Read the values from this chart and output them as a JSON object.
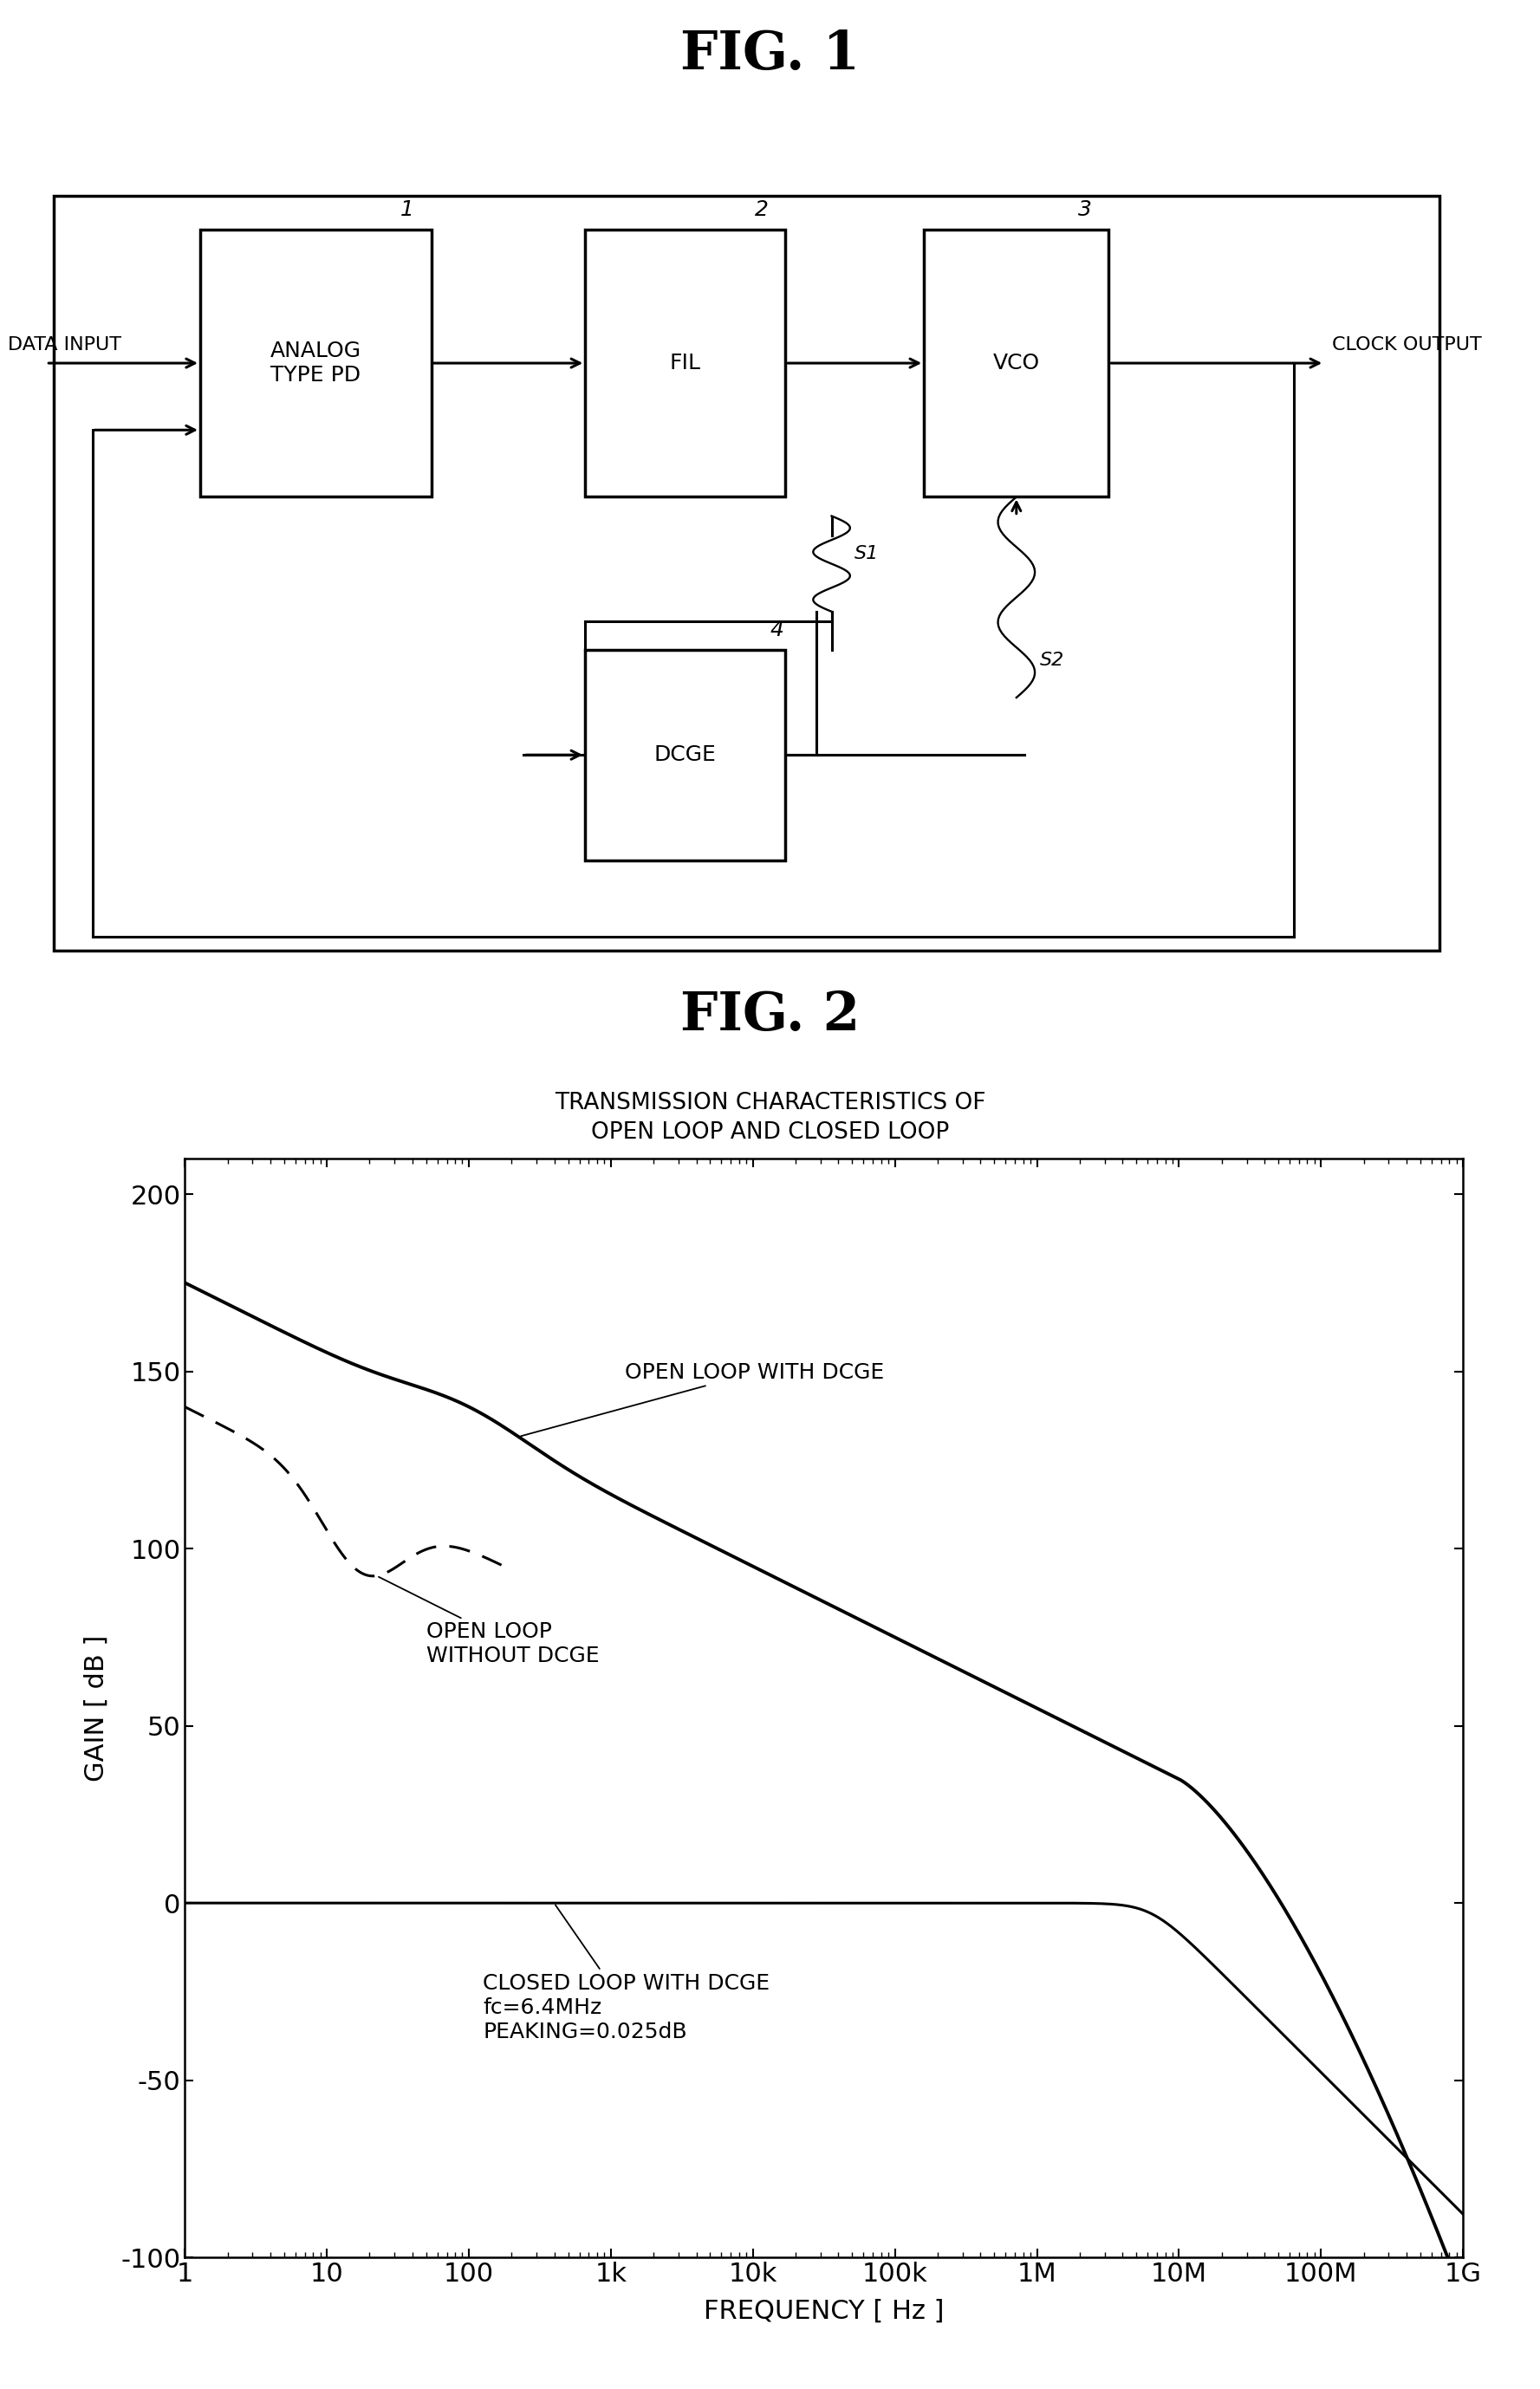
{
  "fig1_title": "FIG. 1",
  "fig2_title": "FIG. 2",
  "fig2_subtitle": "TRANSMISSION CHARACTERISTICS OF\nOPEN LOOP AND CLOSED LOOP",
  "xlabel": "FREQUENCY [ Hz ]",
  "ylabel": "GAIN [ dB ]",
  "xtick_labels": [
    "1",
    "10",
    "100",
    "1k",
    "10k",
    "100k",
    "1M",
    "10M",
    "100M",
    "1G"
  ],
  "xtick_vals": [
    0,
    1,
    2,
    3,
    4,
    5,
    6,
    7,
    8,
    9
  ],
  "ytick_vals": [
    -100,
    -50,
    0,
    50,
    100,
    150,
    200
  ],
  "ylim": [
    -100,
    210
  ],
  "open_loop_dcge_label": "OPEN LOOP WITH DCGE",
  "open_loop_no_dcge_label": "OPEN LOOP\nWITHOUT DCGE",
  "closed_loop_label": "CLOSED LOOP WITH DCGE\nfc=6.4MHz\nPEAKING=0.025dB",
  "bg_color": "#ffffff",
  "line_color": "#000000",
  "fig_width": 17.77,
  "fig_height": 27.57
}
